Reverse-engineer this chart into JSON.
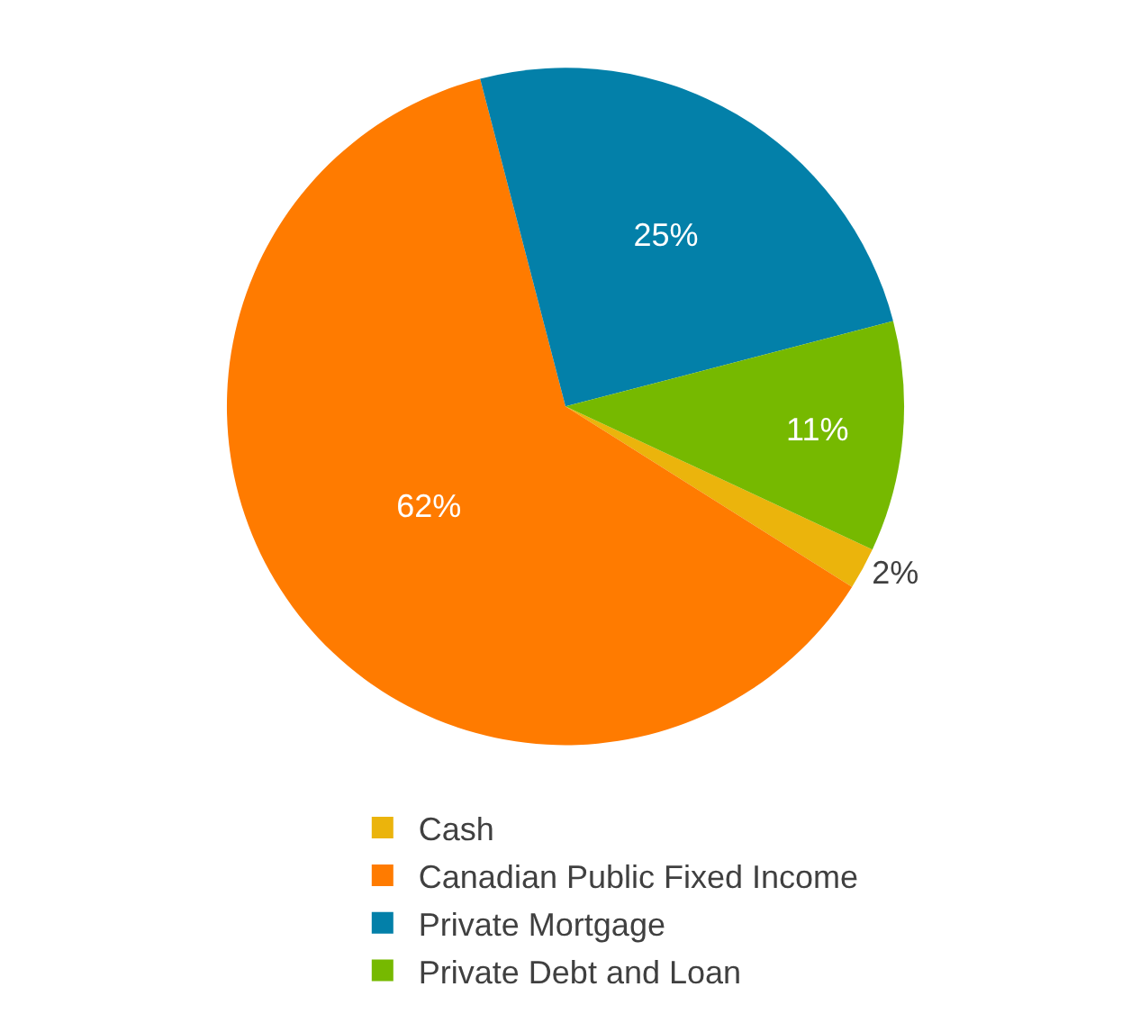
{
  "chart_data": {
    "type": "pie",
    "categories": [
      "Cash",
      "Canadian Public Fixed Income",
      "Private Mortgage",
      "Private Debt and Loan"
    ],
    "values": [
      2,
      62,
      25,
      11
    ],
    "colors": [
      "#ebb40c",
      "#ff7b00",
      "#0380a9",
      "#76b900"
    ],
    "value_labels": [
      "2%",
      "62%",
      "25%",
      "11%"
    ],
    "legend": "bottom"
  }
}
